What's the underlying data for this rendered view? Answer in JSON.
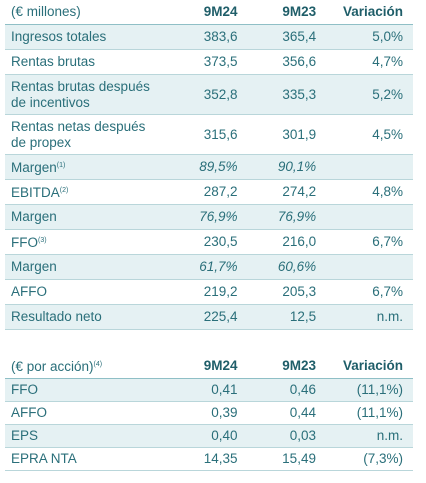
{
  "tables": [
    {
      "header": {
        "label": "(€ millones)",
        "note": null,
        "columns": [
          "9M24",
          "9M23",
          "Variación"
        ]
      },
      "rows": [
        {
          "label": "Ingresos totales",
          "note": null,
          "italic": false,
          "values": [
            "383,6",
            "365,4",
            "5,0%"
          ]
        },
        {
          "label": "Rentas brutas",
          "note": null,
          "italic": false,
          "values": [
            "373,5",
            "356,6",
            "4,7%"
          ]
        },
        {
          "label": "Rentas brutas después de incentivos",
          "note": null,
          "italic": false,
          "values": [
            "352,8",
            "335,3",
            "5,2%"
          ]
        },
        {
          "label": "Rentas netas después de propex",
          "note": null,
          "italic": false,
          "values": [
            "315,6",
            "301,9",
            "4,5%"
          ]
        },
        {
          "label": "Margen",
          "note": "(1)",
          "italic": true,
          "values": [
            "89,5%",
            "90,1%",
            null
          ]
        },
        {
          "label": "EBITDA",
          "note": "(2)",
          "italic": false,
          "values": [
            "287,2",
            "274,2",
            "4,8%"
          ]
        },
        {
          "label": "Margen",
          "note": null,
          "italic": true,
          "values": [
            "76,9%",
            "76,9%",
            null
          ]
        },
        {
          "label": "FFO",
          "note": "(3)",
          "italic": false,
          "values": [
            "230,5",
            "216,0",
            "6,7%"
          ]
        },
        {
          "label": "Margen",
          "note": null,
          "italic": true,
          "values": [
            "61,7%",
            "60,6%",
            null
          ]
        },
        {
          "label": "AFFO",
          "note": null,
          "italic": false,
          "values": [
            "219,2",
            "205,3",
            "6,7%"
          ]
        },
        {
          "label": "Resultado neto",
          "note": null,
          "italic": false,
          "values": [
            "225,4",
            "12,5",
            "n.m."
          ]
        }
      ]
    },
    {
      "header": {
        "label": "(€ por acción)",
        "note": "(4)",
        "columns": [
          "9M24",
          "9M23",
          "Variación"
        ]
      },
      "rows": [
        {
          "label": "FFO",
          "note": null,
          "italic": false,
          "values": [
            "0,41",
            "0,46",
            "(11,1%)"
          ]
        },
        {
          "label": "AFFO",
          "note": null,
          "italic": false,
          "values": [
            "0,39",
            "0,44",
            "(11,1%)"
          ]
        },
        {
          "label": "EPS",
          "note": null,
          "italic": false,
          "values": [
            "0,40",
            "0,03",
            "n.m."
          ]
        },
        {
          "label": "EPRA NTA",
          "note": null,
          "italic": false,
          "values": [
            "14,35",
            "15,49",
            "(7,3%)"
          ]
        }
      ]
    }
  ]
}
